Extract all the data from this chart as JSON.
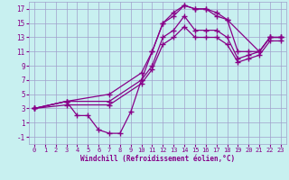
{
  "xlabel": "Windchill (Refroidissement éolien,°C)",
  "bg_color": "#c8f0f0",
  "grid_color": "#a0a0cc",
  "line_color": "#880088",
  "marker": "+",
  "marker_size": 4,
  "line_width": 0.9,
  "xlim": [
    -0.5,
    23.5
  ],
  "ylim": [
    -2,
    18
  ],
  "xticks": [
    0,
    1,
    2,
    3,
    4,
    5,
    6,
    7,
    8,
    9,
    10,
    11,
    12,
    13,
    14,
    15,
    16,
    17,
    18,
    19,
    20,
    21,
    22,
    23
  ],
  "yticks": [
    -1,
    1,
    3,
    5,
    7,
    9,
    11,
    13,
    15,
    17
  ],
  "line1_x": [
    0,
    3,
    4,
    5,
    6,
    7,
    8,
    9,
    10,
    11,
    12,
    13,
    14,
    15,
    16,
    17,
    18,
    21,
    22,
    23
  ],
  "line1_y": [
    3,
    4,
    2,
    2,
    0,
    -0.5,
    -0.5,
    2.5,
    7,
    11,
    15,
    16.5,
    17.5,
    17,
    17,
    16.5,
    15.5,
    11,
    13,
    13
  ],
  "line2_x": [
    0,
    3,
    7,
    10,
    11,
    12,
    13,
    14,
    15,
    16,
    17,
    18,
    19,
    20,
    21,
    22,
    23
  ],
  "line2_y": [
    3,
    4,
    5,
    8,
    11,
    15,
    16,
    17.5,
    17,
    17,
    16,
    15.5,
    11,
    11,
    11,
    13,
    13
  ],
  "line3_x": [
    0,
    3,
    7,
    10,
    11,
    12,
    13,
    14,
    15,
    16,
    17,
    18,
    19,
    20,
    21,
    22,
    23
  ],
  "line3_y": [
    3,
    4,
    4,
    7,
    9,
    13,
    14,
    16,
    14,
    14,
    14,
    13,
    10,
    10.5,
    11,
    13,
    13
  ],
  "line4_x": [
    0,
    3,
    7,
    10,
    11,
    12,
    13,
    14,
    15,
    16,
    17,
    18,
    19,
    20,
    21,
    22,
    23
  ],
  "line4_y": [
    3,
    3.5,
    3.5,
    6.5,
    8.5,
    12,
    13,
    14.5,
    13,
    13,
    13,
    12,
    9.5,
    10,
    10.5,
    12.5,
    12.5
  ]
}
